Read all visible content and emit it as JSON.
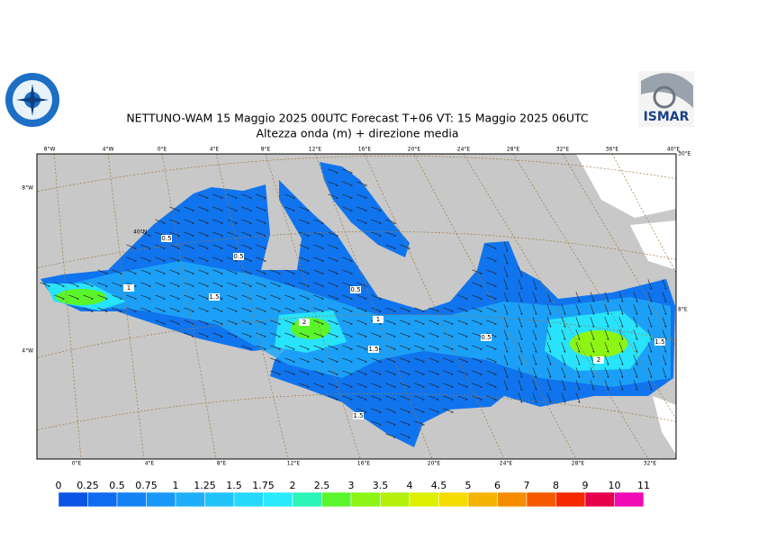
{
  "header": {
    "title": "NETTUNO-WAM  15   Maggio  2025 00UTC Forecast T+06 VT: 15   Maggio  2025 06UTC",
    "subtitle": "Altezza onda (m) + direzione media"
  },
  "logo": {
    "right_text": "ISMAR"
  },
  "map": {
    "top_labels": [
      "8°W",
      "4°W",
      "0°E",
      "4°E",
      "8°E",
      "12°E",
      "16°E",
      "20°E",
      "24°E",
      "28°E",
      "32°E",
      "36°E",
      "40°E"
    ],
    "bottom_labels": [
      "0°E",
      "4°E",
      "8°E",
      "12°E",
      "16°E",
      "20°E",
      "24°E",
      "28°E",
      "32°E"
    ],
    "left_labels": [
      "8°W",
      "4°W"
    ],
    "right_labels": [
      "30°E",
      "8°E"
    ],
    "inner_labels": [
      "40°N"
    ],
    "contour_labels": [
      "0.5",
      "0.5",
      "1",
      "1.5",
      "0.5",
      "2",
      "1",
      "1.5",
      "0.5",
      "2",
      "1.5",
      "1.5"
    ]
  },
  "legend": {
    "labels": [
      "0",
      "0.25",
      "0.5",
      "0.75",
      "1",
      "1.25",
      "1.5",
      "1.75",
      "2",
      "2.5",
      "3",
      "3.5",
      "4",
      "4.5",
      "5",
      "6",
      "7",
      "8",
      "9",
      "10",
      "11"
    ],
    "colors": [
      "#0a55e6",
      "#0f6cf0",
      "#1482f5",
      "#1a98f8",
      "#1eaefa",
      "#22c3fb",
      "#26d8fc",
      "#2aebfd",
      "#2cf5b8",
      "#5af52a",
      "#8cf514",
      "#b4f00a",
      "#dcf000",
      "#f5dc00",
      "#f5b400",
      "#f58c00",
      "#f55a00",
      "#f52800",
      "#e6004b",
      "#f00ab4"
    ]
  }
}
